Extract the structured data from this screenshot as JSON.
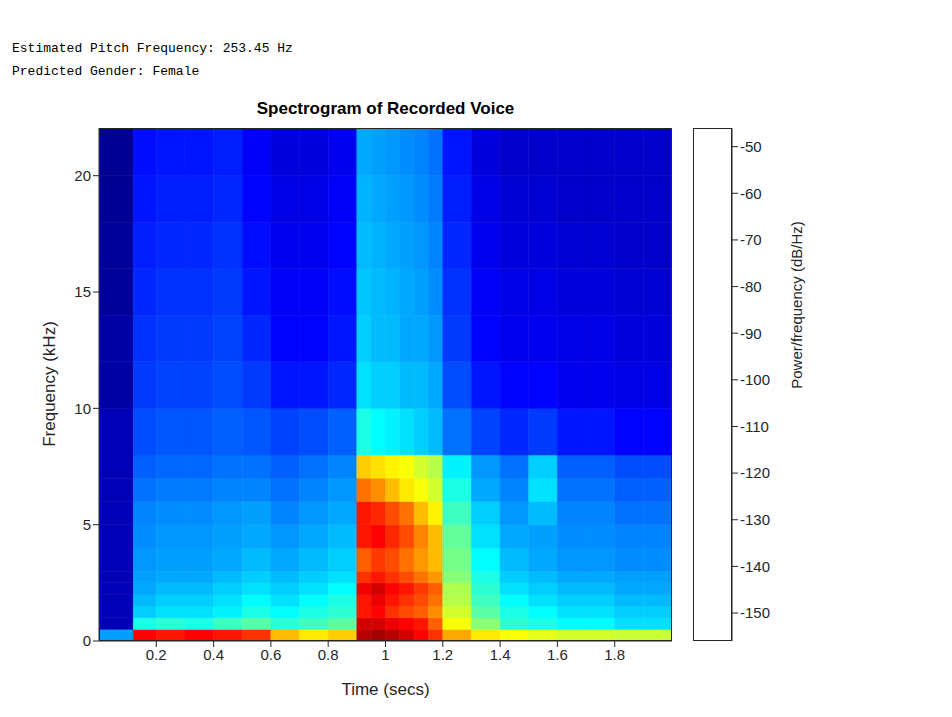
{
  "console_output": [
    "Estimated Pitch Frequency: 253.45 Hz",
    "Predicted Gender: Female"
  ],
  "chart_data": {
    "type": "heatmap",
    "title": "Spectrogram of Recorded Voice",
    "x_label": "Time (secs)",
    "y_label": "Frequency (kHz)",
    "xlim": [
      0,
      2
    ],
    "ylim": [
      0,
      22.05
    ],
    "xticks": [
      0.2,
      0.4,
      0.6,
      0.8,
      1,
      1.2,
      1.4,
      1.6,
      1.8
    ],
    "yticks": [
      0,
      5,
      10,
      15,
      20
    ],
    "grid": false,
    "x_bins": [
      0,
      0.12,
      0.2,
      0.3,
      0.4,
      0.5,
      0.6,
      0.7,
      0.8,
      0.9,
      0.95,
      1.0,
      1.05,
      1.1,
      1.15,
      1.2,
      1.3,
      1.4,
      1.5,
      1.6,
      1.7,
      1.8,
      1.9,
      2.0
    ],
    "y_bins": [
      0,
      0.5,
      1,
      1.5,
      2,
      2.5,
      3,
      4,
      5,
      6,
      7,
      8,
      10,
      12,
      14,
      16,
      18,
      20,
      22.05
    ],
    "cells": [
      [
        -125,
        -60,
        -62,
        -60,
        -62,
        -65,
        -80,
        -85,
        -82,
        -52,
        -50,
        -52,
        -55,
        -60,
        -65,
        -78,
        -85,
        -88,
        -90,
        -92,
        -92,
        -93,
        -93
      ],
      [
        -150,
        -112,
        -110,
        -112,
        -108,
        -105,
        -110,
        -108,
        -105,
        -55,
        -55,
        -58,
        -60,
        -62,
        -70,
        -88,
        -100,
        -110,
        -112,
        -115,
        -115,
        -118,
        -118
      ],
      [
        -150,
        -120,
        -118,
        -118,
        -116,
        -112,
        -115,
        -112,
        -110,
        -62,
        -60,
        -65,
        -68,
        -70,
        -75,
        -92,
        -105,
        -112,
        -115,
        -118,
        -118,
        -120,
        -120
      ],
      [
        -150,
        -122,
        -120,
        -120,
        -118,
        -115,
        -118,
        -115,
        -112,
        -62,
        -58,
        -62,
        -65,
        -68,
        -72,
        -95,
        -108,
        -115,
        -118,
        -120,
        -120,
        -122,
        -122
      ],
      [
        -150,
        -124,
        -122,
        -122,
        -120,
        -118,
        -120,
        -118,
        -115,
        -58,
        -55,
        -60,
        -62,
        -66,
        -70,
        -96,
        -110,
        -118,
        -120,
        -122,
        -122,
        -124,
        -124
      ],
      [
        -150,
        -125,
        -124,
        -124,
        -122,
        -120,
        -122,
        -120,
        -118,
        -65,
        -62,
        -65,
        -68,
        -72,
        -76,
        -100,
        -112,
        -120,
        -122,
        -124,
        -124,
        -125,
        -125
      ],
      [
        -150,
        -126,
        -125,
        -125,
        -124,
        -122,
        -124,
        -122,
        -120,
        -70,
        -66,
        -68,
        -72,
        -76,
        -80,
        -102,
        -115,
        -122,
        -124,
        -126,
        -126,
        -127,
        -127
      ],
      [
        -150,
        -127,
        -126,
        -126,
        -125,
        -124,
        -126,
        -124,
        -122,
        -62,
        -60,
        -64,
        -68,
        -74,
        -80,
        -104,
        -118,
        -124,
        -125,
        -127,
        -127,
        -128,
        -128
      ],
      [
        -150,
        -128,
        -127,
        -127,
        -126,
        -125,
        -128,
        -126,
        -124,
        -62,
        -64,
        -68,
        -72,
        -80,
        -86,
        -108,
        -120,
        -126,
        -122,
        -128,
        -128,
        -130,
        -130
      ],
      [
        -150,
        -130,
        -129,
        -129,
        -128,
        -128,
        -130,
        -128,
        -126,
        -72,
        -75,
        -80,
        -85,
        -88,
        -92,
        -112,
        -124,
        -128,
        -118,
        -130,
        -130,
        -132,
        -132
      ],
      [
        -150,
        -132,
        -131,
        -131,
        -130,
        -130,
        -132,
        -130,
        -128,
        -82,
        -84,
        -86,
        -88,
        -92,
        -95,
        -116,
        -126,
        -130,
        -120,
        -132,
        -132,
        -134,
        -134
      ],
      [
        -150,
        -134,
        -133,
        -133,
        -132,
        -133,
        -135,
        -134,
        -132,
        -112,
        -115,
        -116,
        -118,
        -120,
        -122,
        -130,
        -135,
        -138,
        -136,
        -140,
        -140,
        -142,
        -142
      ],
      [
        -152,
        -136,
        -135,
        -135,
        -134,
        -136,
        -140,
        -140,
        -138,
        -118,
        -120,
        -120,
        -122,
        -122,
        -124,
        -134,
        -140,
        -142,
        -142,
        -144,
        -144,
        -145,
        -145
      ],
      [
        -152,
        -137,
        -136,
        -136,
        -135,
        -138,
        -142,
        -142,
        -140,
        -120,
        -122,
        -122,
        -124,
        -124,
        -126,
        -136,
        -142,
        -144,
        -144,
        -145,
        -145,
        -146,
        -146
      ],
      [
        -153,
        -138,
        -137,
        -137,
        -136,
        -140,
        -143,
        -143,
        -141,
        -121,
        -122,
        -123,
        -124,
        -125,
        -127,
        -137,
        -143,
        -145,
        -145,
        -146,
        -146,
        -147,
        -147
      ],
      [
        -153,
        -139,
        -138,
        -138,
        -137,
        -141,
        -144,
        -144,
        -142,
        -122,
        -123,
        -124,
        -125,
        -126,
        -128,
        -138,
        -144,
        -146,
        -146,
        -147,
        -147,
        -148,
        -148
      ],
      [
        -154,
        -140,
        -139,
        -139,
        -138,
        -142,
        -145,
        -145,
        -143,
        -123,
        -124,
        -125,
        -126,
        -127,
        -129,
        -139,
        -145,
        -147,
        -147,
        -148,
        -148,
        -148,
        -148
      ],
      [
        -154,
        -141,
        -140,
        -140,
        -139,
        -143,
        -146,
        -146,
        -144,
        -124,
        -125,
        -126,
        -127,
        -128,
        -130,
        -140,
        -146,
        -148,
        -148,
        -148,
        -148,
        -148,
        -148
      ]
    ],
    "colorbar": {
      "label": "Power/frequency (dB/Hz)",
      "range": [
        -156,
        -46
      ],
      "ticks": [
        -150,
        -140,
        -130,
        -120,
        -110,
        -100,
        -90,
        -80,
        -70,
        -60,
        -50
      ]
    }
  }
}
